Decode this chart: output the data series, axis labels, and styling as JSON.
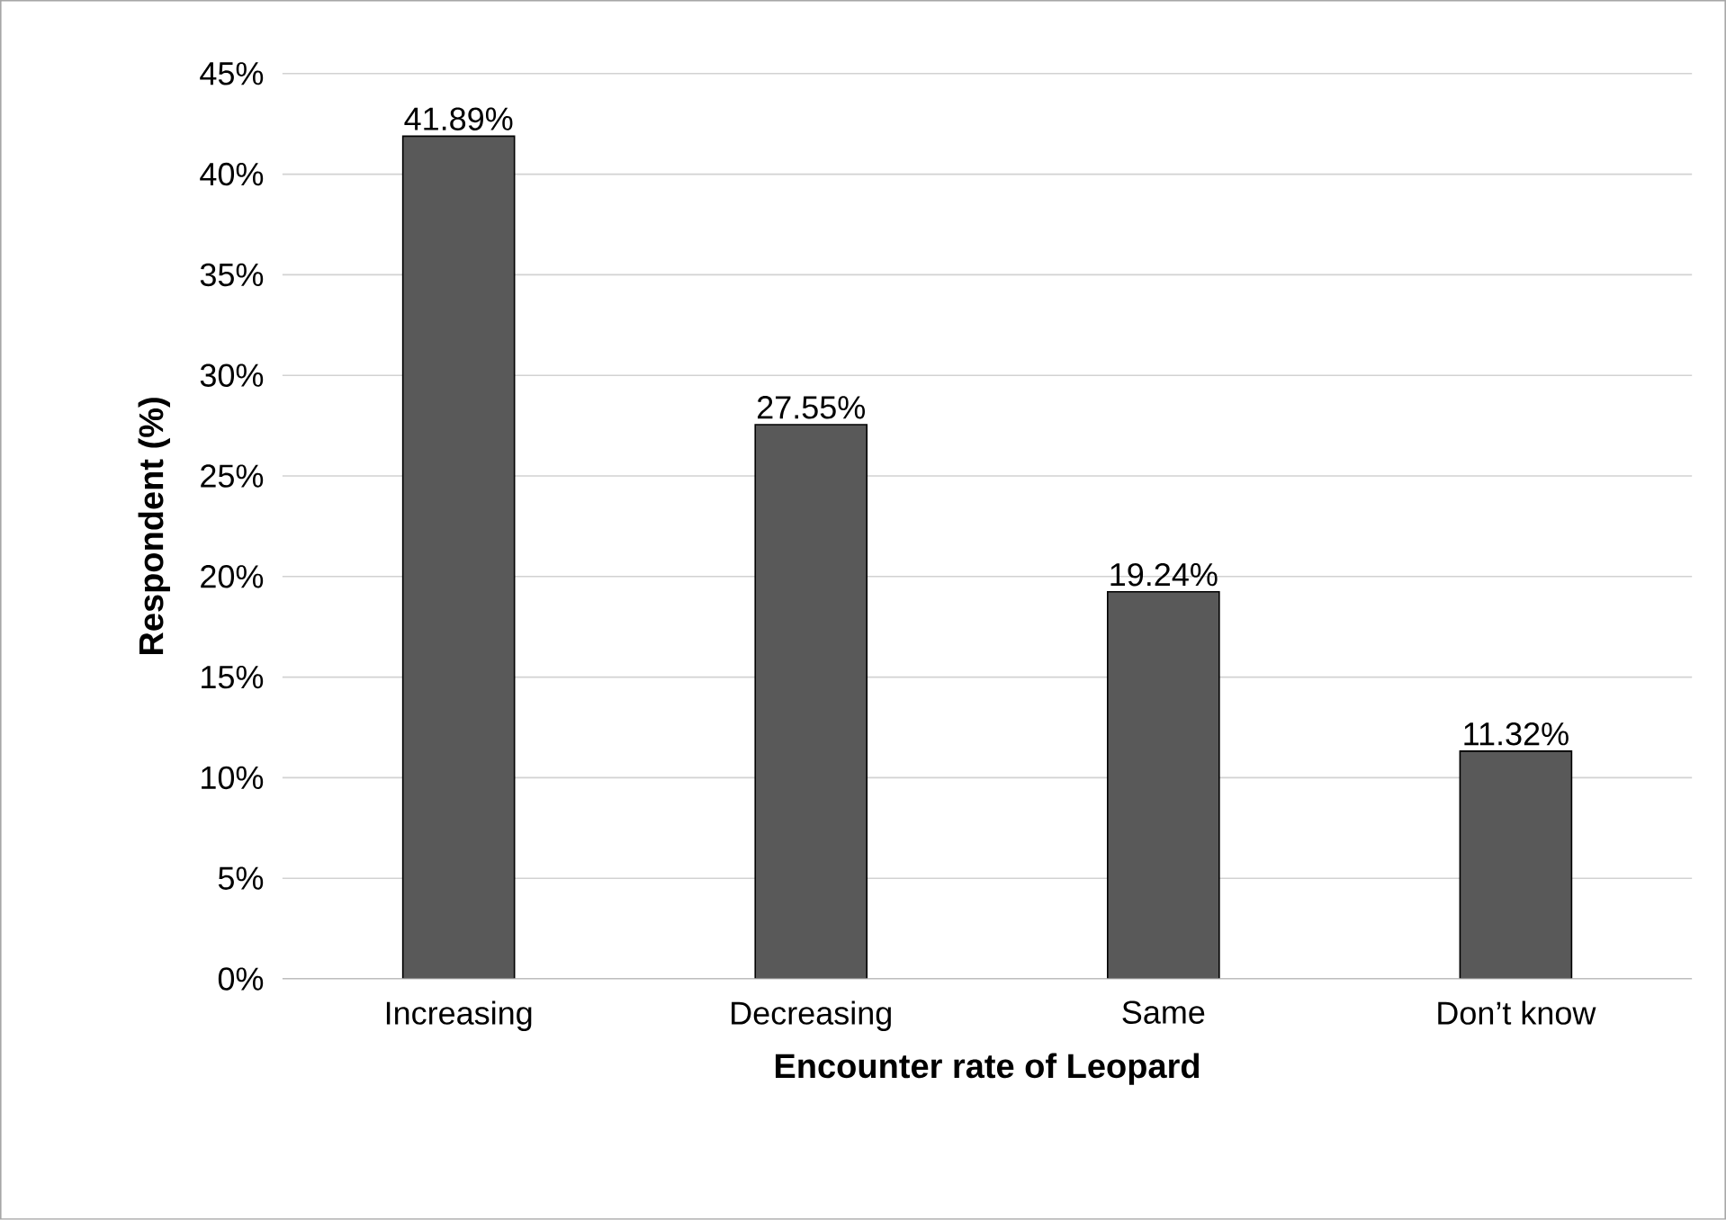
{
  "chart_data": {
    "type": "bar",
    "xlabel": "Encounter rate of Leopard",
    "ylabel": "Respondent (%)",
    "categories": [
      "Increasing",
      "Decreasing",
      "Same",
      "Don’t know"
    ],
    "values": [
      41.89,
      27.55,
      19.24,
      11.32
    ],
    "value_labels": [
      "41.89%",
      "27.55%",
      "19.24%",
      "11.32%"
    ],
    "color": "#595959",
    "ylim": [
      0,
      45
    ],
    "yticks": [
      {
        "value": 0,
        "label": "0%"
      },
      {
        "value": 5,
        "label": "5%"
      },
      {
        "value": 10,
        "label": "10%"
      },
      {
        "value": 15,
        "label": "15%"
      },
      {
        "value": 20,
        "label": "20%"
      },
      {
        "value": 25,
        "label": "25%"
      },
      {
        "value": 30,
        "label": "30%"
      },
      {
        "value": 35,
        "label": "35%"
      },
      {
        "value": 40,
        "label": "40%"
      },
      {
        "value": 45,
        "label": "45%"
      }
    ],
    "grid": "y"
  }
}
